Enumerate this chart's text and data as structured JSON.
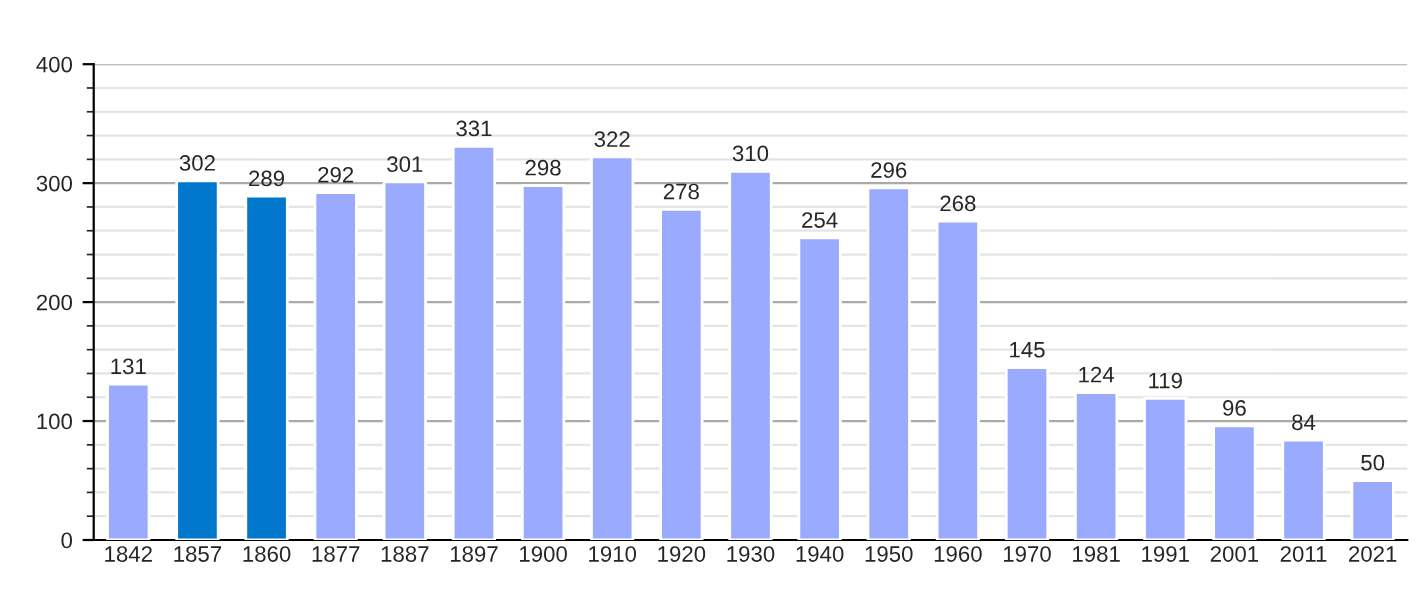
{
  "chart_data": {
    "type": "bar",
    "categories": [
      "1842",
      "1857",
      "1860",
      "1877",
      "1887",
      "1897",
      "1900",
      "1910",
      "1920",
      "1930",
      "1940",
      "1950",
      "1960",
      "1970",
      "1981",
      "1991",
      "2001",
      "2011",
      "2021"
    ],
    "values": [
      131,
      302,
      289,
      292,
      301,
      331,
      298,
      322,
      278,
      310,
      254,
      296,
      268,
      145,
      124,
      119,
      96,
      84,
      50
    ],
    "colors": [
      "#99aaff",
      "#0077cc",
      "#0077cc",
      "#99aaff",
      "#99aaff",
      "#99aaff",
      "#99aaff",
      "#99aaff",
      "#99aaff",
      "#99aaff",
      "#99aaff",
      "#99aaff",
      "#99aaff",
      "#99aaff",
      "#99aaff",
      "#99aaff",
      "#99aaff",
      "#99aaff",
      "#99aaff"
    ],
    "ylim": [
      0,
      400
    ],
    "yticks": [
      0,
      100,
      200,
      300,
      400
    ],
    "grid": "y",
    "data_labels": true
  }
}
